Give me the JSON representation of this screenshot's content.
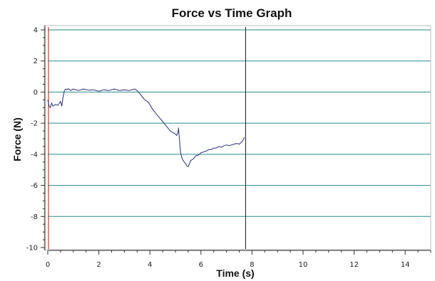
{
  "chart_data": {
    "type": "line",
    "title": "Force vs Time Graph",
    "xlabel": "Time (s)",
    "ylabel": "Force (N)",
    "xlim": [
      0,
      15
    ],
    "ylim": [
      -10,
      4
    ],
    "x_ticks": [
      0,
      2,
      4,
      6,
      8,
      10,
      12,
      14
    ],
    "y_ticks": [
      4,
      2,
      0,
      -2,
      -4,
      -6,
      -8,
      -10
    ],
    "grid": "horizontal",
    "legend": "none",
    "colors": {
      "series": "#2b2f7a",
      "grid": "#2a8a8a",
      "zero_marker": "#d23a2a",
      "cursor": "#1a1a1a",
      "axis": "#333333"
    },
    "markers": {
      "start_line_x": 0,
      "cursor_line_x": 7.75
    },
    "series": [
      {
        "x": [
          0.0,
          0.05,
          0.1,
          0.15,
          0.2,
          0.3,
          0.4,
          0.5,
          0.55,
          0.6,
          0.65,
          0.7,
          0.75,
          0.8,
          0.9,
          1.0,
          1.2,
          1.4,
          1.6,
          1.8,
          2.0,
          2.2,
          2.4,
          2.6,
          2.8,
          3.0,
          3.2,
          3.4,
          3.5,
          3.6,
          3.7,
          3.8,
          3.9,
          4.0,
          4.1,
          4.2,
          4.3,
          4.4,
          4.5,
          4.6,
          4.7,
          4.8,
          4.9,
          5.0,
          5.05,
          5.1,
          5.12,
          5.15,
          5.18,
          5.2,
          5.25,
          5.3,
          5.35,
          5.4,
          5.45,
          5.5,
          5.55,
          5.6,
          5.7,
          5.8,
          5.9,
          6.0,
          6.1,
          6.2,
          6.3,
          6.4,
          6.5,
          6.6,
          6.7,
          6.8,
          6.9,
          7.0,
          7.1,
          7.2,
          7.3,
          7.4,
          7.5,
          7.6,
          7.65,
          7.7
        ],
        "y": [
          -0.5,
          -0.9,
          -1.0,
          -0.7,
          -0.9,
          -0.8,
          -0.85,
          -0.6,
          -0.9,
          -0.3,
          0.1,
          0.2,
          0.15,
          0.22,
          0.1,
          0.2,
          0.1,
          0.2,
          0.12,
          0.15,
          0.05,
          0.15,
          0.1,
          0.2,
          0.1,
          0.15,
          0.1,
          0.2,
          0.1,
          -0.1,
          -0.3,
          -0.5,
          -0.6,
          -0.8,
          -1.1,
          -1.3,
          -1.5,
          -1.7,
          -1.9,
          -2.1,
          -2.3,
          -2.5,
          -2.6,
          -2.7,
          -2.8,
          -2.6,
          -2.3,
          -2.9,
          -3.5,
          -3.9,
          -4.2,
          -4.4,
          -4.5,
          -4.6,
          -4.75,
          -4.8,
          -4.6,
          -4.4,
          -4.3,
          -4.1,
          -4.05,
          -3.9,
          -3.85,
          -3.8,
          -3.7,
          -3.7,
          -3.6,
          -3.6,
          -3.5,
          -3.55,
          -3.45,
          -3.4,
          -3.45,
          -3.4,
          -3.35,
          -3.3,
          -3.35,
          -3.2,
          -3.1,
          -2.9
        ]
      }
    ]
  }
}
